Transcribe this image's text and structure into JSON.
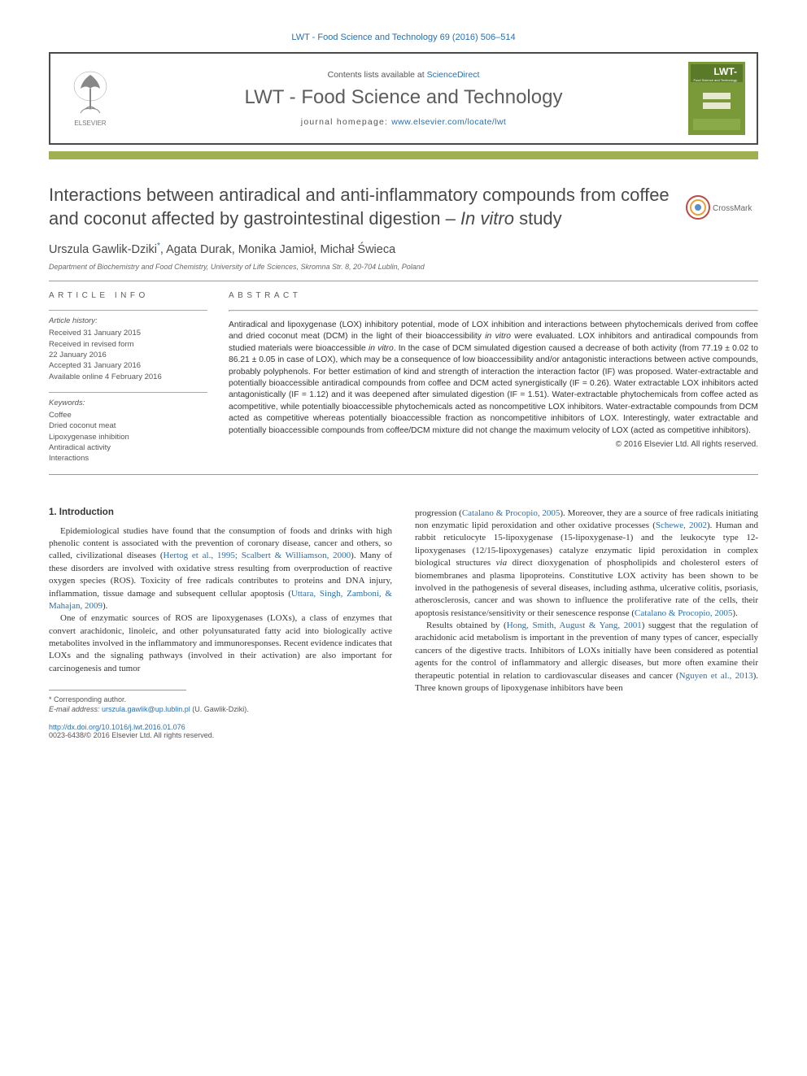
{
  "header": {
    "topCitation": "LWT - Food Science and Technology 69 (2016) 506–514",
    "contentsPrefix": "Contents lists available at ",
    "contentsLink": "ScienceDirect",
    "journalName": "LWT - Food Science and Technology",
    "homepageLabel": "journal homepage: ",
    "homepageUrl": "www.elsevier.com/locate/lwt",
    "publisherLabel": "ELSEVIER",
    "coverTitle": "LWT-",
    "coverSubtitle": "Food Science and Technology",
    "accentColor": "#9eb04f"
  },
  "article": {
    "titleP1": "Interactions between antiradical and anti-inflammatory compounds from coffee and coconut affected by gastrointestinal digestion – ",
    "titleItal": "In vitro",
    "titleP2": " study",
    "authorsHtml": "Urszula Gawlik-Dziki",
    "authorsSuffix": "*",
    "authorsRest": ", Agata Durak, Monika Jamioł, Michał Świeca",
    "affiliation": "Department of Biochemistry and Food Chemistry, University of Life Sciences, Skromna Str. 8, 20-704 Lublin, Poland",
    "crossmarkLabel": "CrossMark"
  },
  "info": {
    "label": "ARTICLE INFO",
    "historyHeading": "Article history:",
    "history": [
      "Received 31 January 2015",
      "Received in revised form",
      "22 January 2016",
      "Accepted 31 January 2016",
      "Available online 4 February 2016"
    ],
    "keywordsHeading": "Keywords:",
    "keywords": [
      "Coffee",
      "Dried coconut meat",
      "Lipoxygenase inhibition",
      "Antiradical activity",
      "Interactions"
    ]
  },
  "abstract": {
    "label": "ABSTRACT",
    "text": "Antiradical and lipoxygenase (LOX) inhibitory potential, mode of LOX inhibition and interactions between phytochemicals derived from coffee and dried coconut meat (DCM) in the light of their bioaccessibility <span class=\"ital\">in vitro</span> were evaluated. LOX inhibitors and antiradical compounds from studied materials were bioaccessible <span class=\"ital\">in vitro</span>. In the case of DCM simulated digestion caused a decrease of both activity (from 77.19 ± 0.02 to 86.21 ± 0.05 in case of LOX), which may be a consequence of low bioaccessibility and/or antagonistic interactions between active compounds, probably polyphenols. For better estimation of kind and strength of interaction the interaction factor (IF) was proposed. Water-extractable and potentially bioaccessible antiradical compounds from coffee and DCM acted synergistically (IF = 0.26). Water extractable LOX inhibitors acted antagonistically (IF = 1.12) and it was deepened after simulated digestion (IF = 1.51). Water-extractable phytochemicals from coffee acted as acompetitive, while potentially bioaccessible phytochemicals acted as noncompetitive LOX inhibitors. Water-extractable compounds from DCM acted as competitive whereas potentially bioaccessible fraction as noncompetitive inhibitors of LOX. Interestingly, water extractable and potentially bioaccessible compounds from coffee/DCM mixture did not change the maximum velocity of LOX (acted as competitive inhibitors).",
    "copyright": "© 2016 Elsevier Ltd. All rights reserved."
  },
  "body": {
    "heading": "1. Introduction",
    "leftParagraphs": [
      "Epidemiological studies have found that the consumption of foods and drinks with high phenolic content is associated with the prevention of coronary disease, cancer and others, so called, civilizational diseases (<span class=\"cite\">Hertog et al., 1995; Scalbert & Williamson, 2000</span>). Many of these disorders are involved with oxidative stress resulting from overproduction of reactive oxygen species (ROS). Toxicity of free radicals contributes to proteins and DNA injury, inflammation, tissue damage and subsequent cellular apoptosis (<span class=\"cite\">Uttara, Singh, Zamboni, & Mahajan, 2009</span>).",
      "One of enzymatic sources of ROS are lipoxygenases (LOXs), a class of enzymes that convert arachidonic, linoleic, and other polyunsaturated fatty acid into biologically active metabolites involved in the inflammatory and immunoresponses. Recent evidence indicates that LOXs and the signaling pathways (involved in their activation) are also important for carcinogenesis and tumor"
    ],
    "rightParagraphs": [
      "progression (<span class=\"cite\">Catalano & Procopio, 2005</span>). Moreover, they are a source of free radicals initiating non enzymatic lipid peroxidation and other oxidative processes (<span class=\"cite\">Schewe, 2002</span>). Human and rabbit reticulocyte 15-lipoxygenase (15-lipoxygenase-1) and the leukocyte type 12-lipoxygenases (12/15-lipoxygenases) catalyze enzymatic lipid peroxidation in complex biological structures <span class=\"ital\">via</span> direct dioxygenation of phospholipids and cholesterol esters of biomembranes and plasma lipoproteins. Constitutive LOX activity has been shown to be involved in the pathogenesis of several diseases, including asthma, ulcerative colitis, psoriasis, atherosclerosis, cancer and was shown to influence the proliferative rate of the cells, their apoptosis resistance/sensitivity or their senescence response (<span class=\"cite\">Catalano & Procopio, 2005</span>).",
      "Results obtained by (<span class=\"cite\">Hong, Smith, August & Yang, 2001</span>) suggest that the regulation of arachidonic acid metabolism is important in the prevention of many types of cancer, especially cancers of the digestive tracts. Inhibitors of LOXs initially have been considered as potential agents for the control of inflammatory and allergic diseases, but more often examine their therapeutic potential in relation to cardiovascular diseases and cancer (<span class=\"cite\">Nguyen et al., 2013</span>). Three known groups of lipoxygenase inhibitors have been"
    ]
  },
  "footer": {
    "correspondingLabel": "* Corresponding author.",
    "emailLabel": "E-mail address: ",
    "email": "urszula.gawlik@up.lublin.pl",
    "emailSuffix": " (U. Gawlik-Dziki).",
    "doi": "http://dx.doi.org/10.1016/j.lwt.2016.01.076",
    "issn": "0023-6438/© 2016 Elsevier Ltd. All rights reserved."
  },
  "colors": {
    "link": "#2a6fad",
    "accent": "#9eb04f",
    "text": "#333333",
    "muted": "#5d5d5d",
    "coverGreen": "#7a9a3a"
  }
}
